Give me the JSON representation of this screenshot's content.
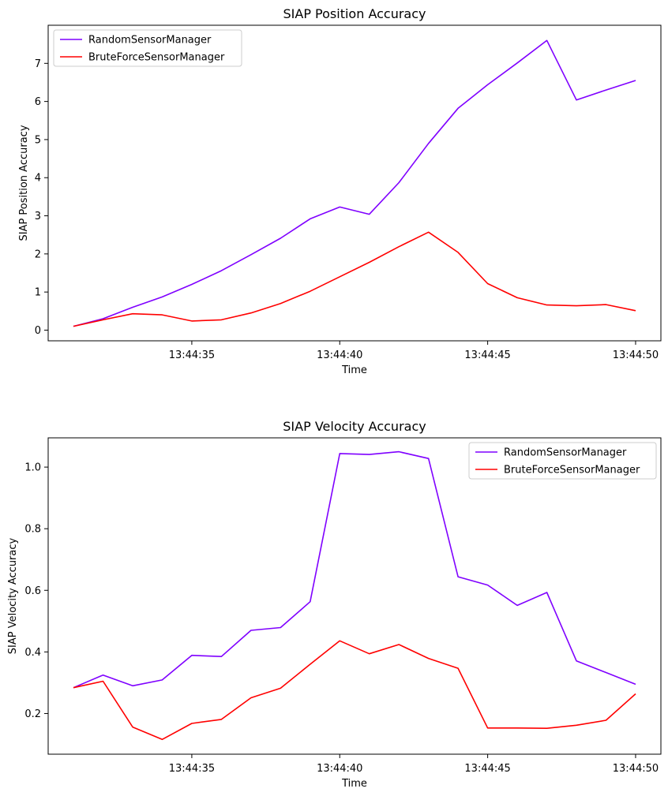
{
  "chart_data": [
    {
      "type": "line",
      "title": "SIAP Position Accuracy",
      "xlabel": "Time",
      "ylabel": "SIAP Position Accuracy",
      "x": [
        "13:44:31",
        "13:44:32",
        "13:44:33",
        "13:44:34",
        "13:44:35",
        "13:44:36",
        "13:44:37",
        "13:44:38",
        "13:44:39",
        "13:44:40",
        "13:44:41",
        "13:44:42",
        "13:44:43",
        "13:44:44",
        "13:44:45",
        "13:44:46",
        "13:44:47",
        "13:44:48",
        "13:44:49",
        "13:44:50"
      ],
      "xticks": [
        "13:44:35",
        "13:44:40",
        "13:44:45",
        "13:44:50"
      ],
      "yticks": [
        0,
        1,
        2,
        3,
        4,
        5,
        6,
        7
      ],
      "ylim": [
        -0.28,
        8.0
      ],
      "legend": "upper-left",
      "series": [
        {
          "name": "RandomSensorManager",
          "color": "#7f00ff",
          "values": [
            0.1,
            0.3,
            0.6,
            0.87,
            1.2,
            1.56,
            1.98,
            2.41,
            2.92,
            3.23,
            3.04,
            3.87,
            4.9,
            5.82,
            6.44,
            7.01,
            7.6,
            6.04,
            6.3,
            6.55
          ]
        },
        {
          "name": "BruteForceSensorManager",
          "color": "#ff0000",
          "values": [
            0.1,
            0.27,
            0.43,
            0.4,
            0.24,
            0.27,
            0.45,
            0.7,
            1.02,
            1.4,
            1.78,
            2.19,
            2.57,
            2.04,
            1.22,
            0.85,
            0.66,
            0.64,
            0.67,
            0.51
          ]
        }
      ]
    },
    {
      "type": "line",
      "title": "SIAP Velocity Accuracy",
      "xlabel": "Time",
      "ylabel": "SIAP Velocity Accuracy",
      "x": [
        "13:44:31",
        "13:44:32",
        "13:44:33",
        "13:44:34",
        "13:44:35",
        "13:44:36",
        "13:44:37",
        "13:44:38",
        "13:44:39",
        "13:44:40",
        "13:44:41",
        "13:44:42",
        "13:44:43",
        "13:44:44",
        "13:44:45",
        "13:44:46",
        "13:44:47",
        "13:44:48",
        "13:44:49",
        "13:44:50"
      ],
      "xticks": [
        "13:44:35",
        "13:44:40",
        "13:44:45",
        "13:44:50"
      ],
      "yticks": [
        "0.2",
        "0.4",
        "0.6",
        "0.8",
        "1.0"
      ],
      "ylim": [
        0.068,
        1.095
      ],
      "legend": "upper-right",
      "series": [
        {
          "name": "RandomSensorManager",
          "color": "#7f00ff",
          "values": [
            0.284,
            0.325,
            0.29,
            0.309,
            0.389,
            0.385,
            0.47,
            0.479,
            0.563,
            1.044,
            1.041,
            1.05,
            1.028,
            0.644,
            0.617,
            0.551,
            0.593,
            0.371,
            0.333,
            0.295
          ]
        },
        {
          "name": "BruteForceSensorManager",
          "color": "#ff0000",
          "values": [
            0.284,
            0.305,
            0.156,
            0.116,
            0.168,
            0.181,
            0.251,
            0.282,
            0.36,
            0.436,
            0.394,
            0.424,
            0.379,
            0.347,
            0.153,
            0.153,
            0.152,
            0.162,
            0.178,
            0.264
          ]
        }
      ]
    }
  ]
}
